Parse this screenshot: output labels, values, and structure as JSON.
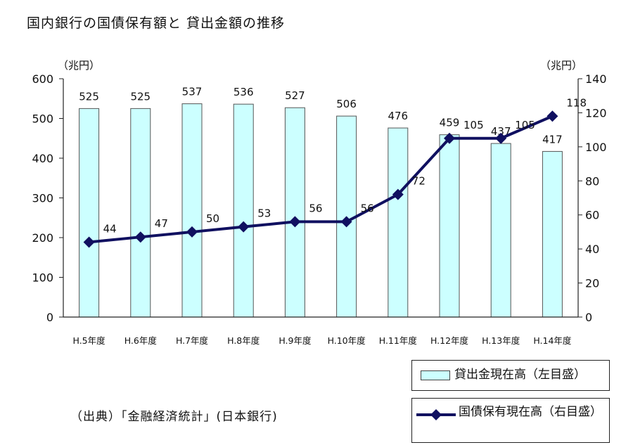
{
  "title": "国内銀行の国債保有額と 貸出金額の推移",
  "source": "（出典）「金融経済統計」(日本銀行)",
  "colors": {
    "bar_fill": "#ccffff",
    "bar_stroke": "#555555",
    "line": "#101060",
    "grid": "#888888"
  },
  "chart_data": {
    "type": "bar+line",
    "categories": [
      "H.5年度",
      "H.6年度",
      "H.7年度",
      "H.8年度",
      "H.9年度",
      "H.10年度",
      "H.11年度",
      "H.12年度",
      "H.13年度",
      "H.14年度"
    ],
    "series": [
      {
        "name": "貸出金現在高（左目盛）",
        "type": "bar",
        "axis": "left",
        "values": [
          525,
          525,
          537,
          536,
          527,
          506,
          476,
          459,
          437,
          417
        ]
      },
      {
        "name": "国債保有現在高（右目盛）",
        "type": "line",
        "axis": "right",
        "values": [
          44,
          47,
          50,
          53,
          56,
          56,
          72,
          105,
          105,
          118
        ]
      }
    ],
    "left_axis": {
      "unit": "（兆円）",
      "min": 0,
      "max": 600,
      "ticks": [
        0,
        100,
        200,
        300,
        400,
        500,
        600
      ]
    },
    "right_axis": {
      "unit": "（兆円）",
      "min": 0,
      "max": 140,
      "ticks": [
        0,
        20,
        40,
        60,
        80,
        100,
        120,
        140
      ]
    },
    "grid": false,
    "legend": "bottom-right"
  }
}
